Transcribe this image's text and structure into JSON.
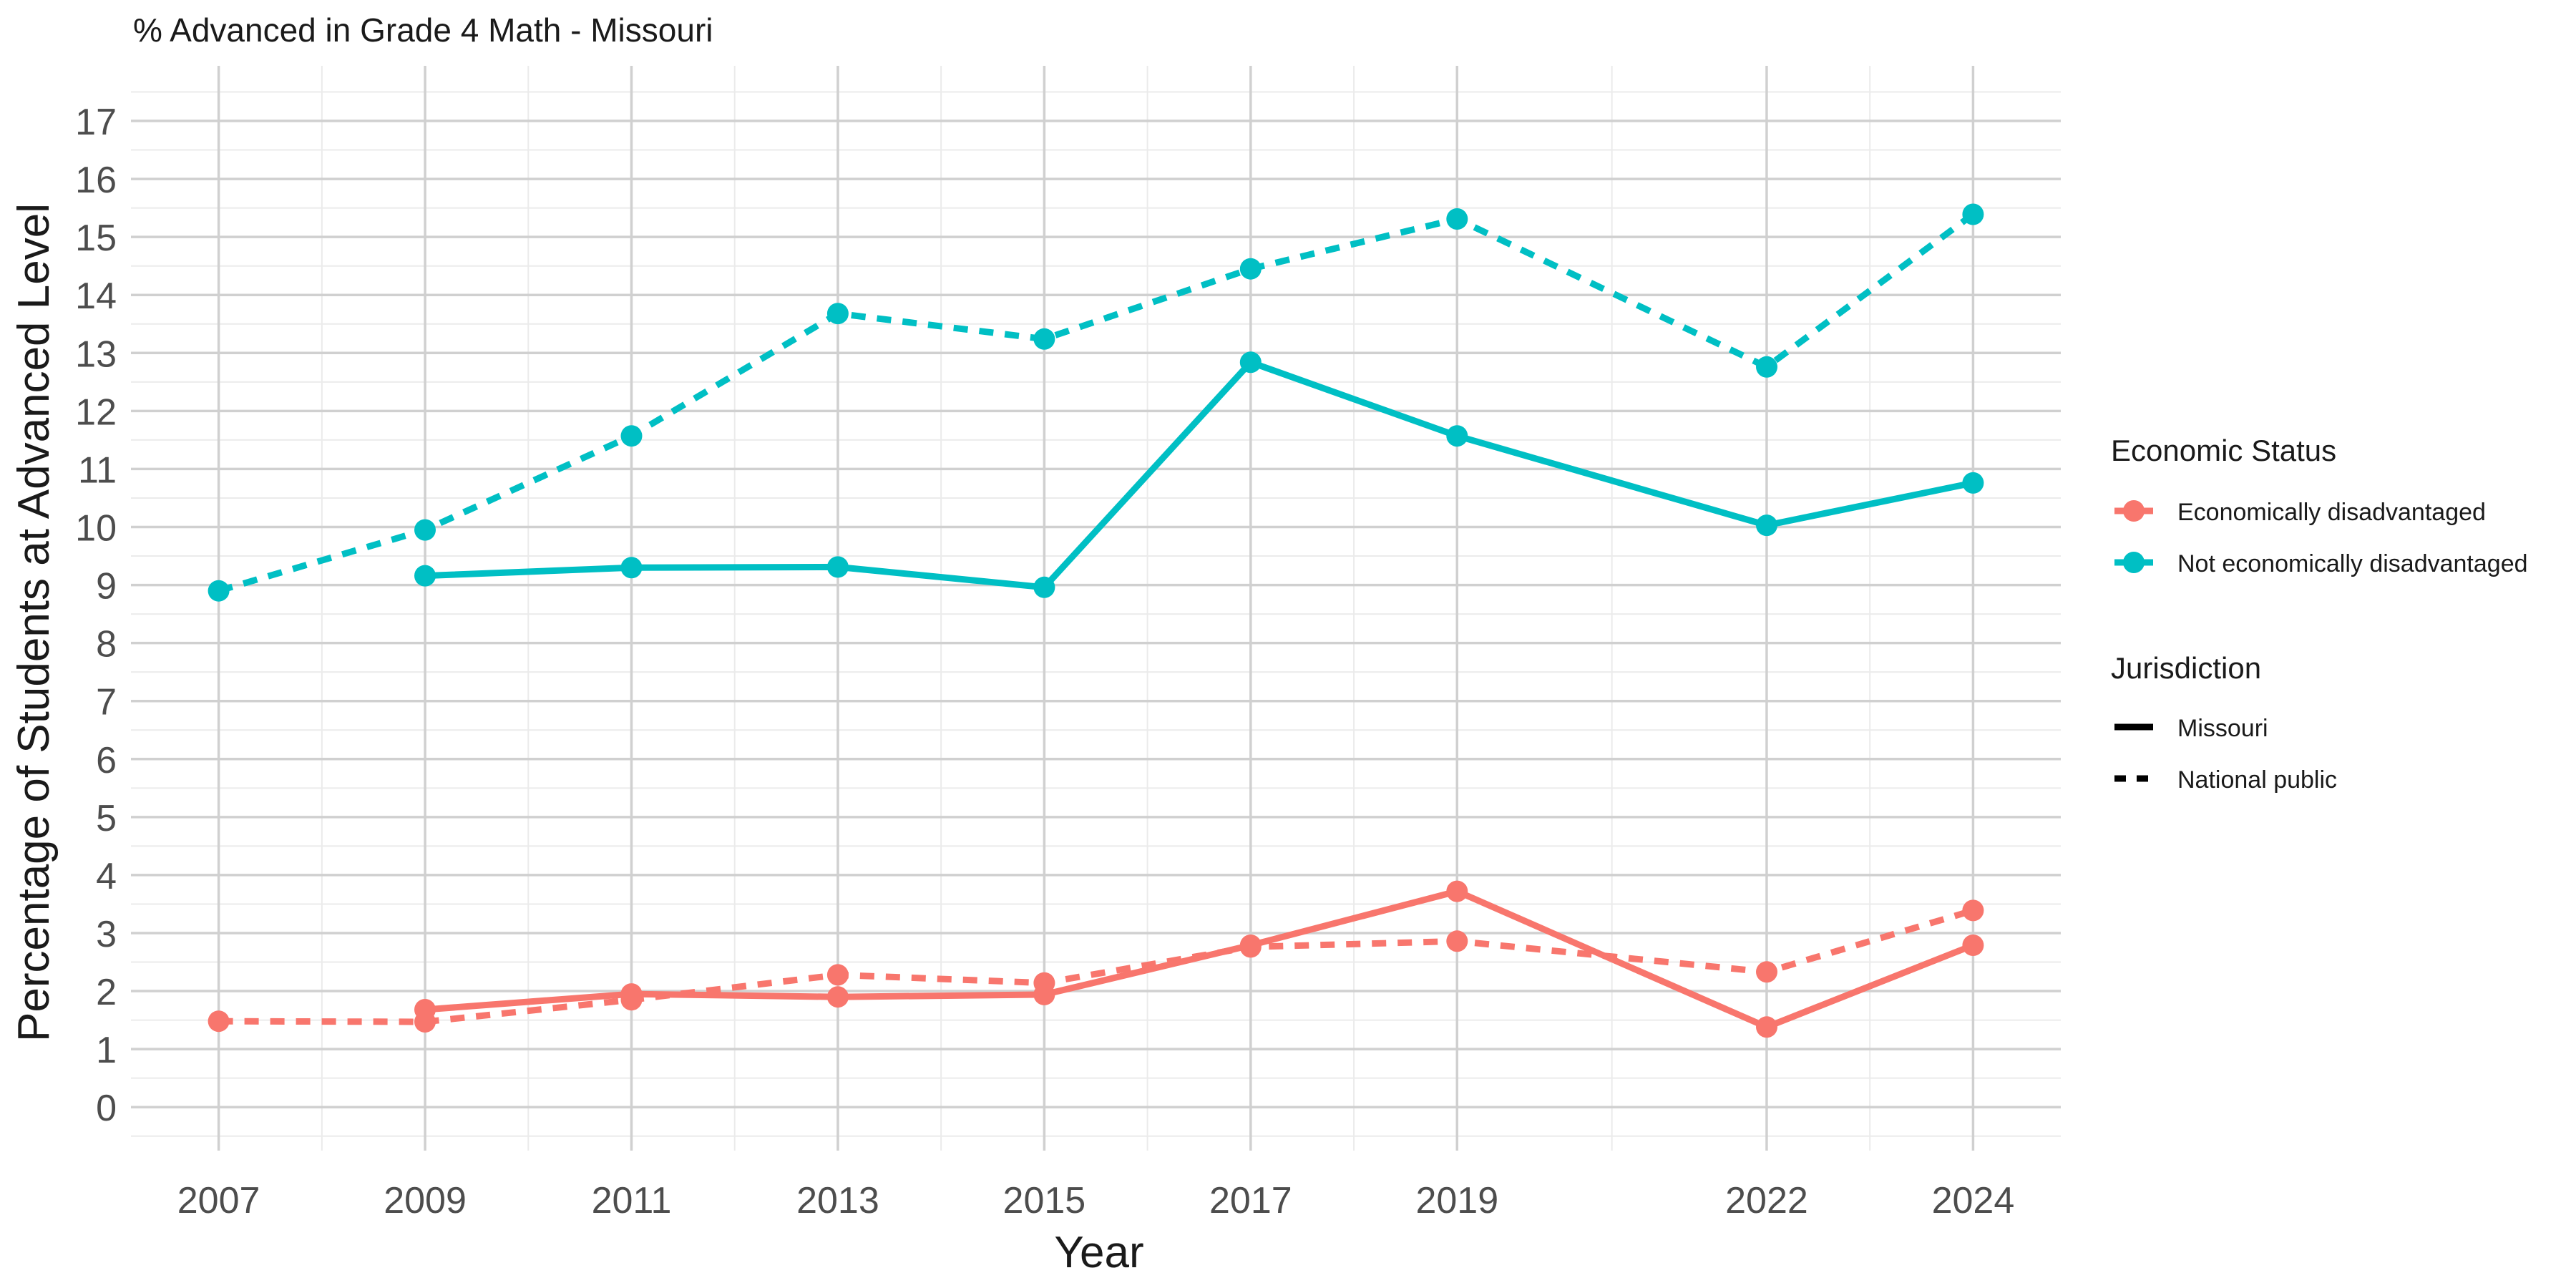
{
  "chart_data": {
    "type": "line",
    "title": "% Advanced in Grade 4 Math - Missouri",
    "xlabel": "Year",
    "ylabel": "Percentage of Students at Advanced Level",
    "x_ticks": [
      2007,
      2009,
      2011,
      2013,
      2015,
      2017,
      2019,
      2022,
      2024
    ],
    "xlim": [
      2006.15,
      2024.85
    ],
    "y_ticks": [
      0,
      1,
      2,
      3,
      4,
      5,
      6,
      7,
      8,
      9,
      10,
      11,
      12,
      13,
      14,
      15,
      16,
      17
    ],
    "ylim": [
      -0.75,
      17.95
    ],
    "grid": true,
    "legend_placement": "right",
    "legend": {
      "color_title": "Economic Status",
      "color_items": [
        {
          "label": "Economically disadvantaged",
          "color": "#F8766D"
        },
        {
          "label": "Not economically disadvantaged",
          "color": "#00BFC4"
        }
      ],
      "linetype_title": "Jurisdiction",
      "linetype_items": [
        {
          "label": "Missouri",
          "dash": "solid"
        },
        {
          "label": "National public",
          "dash": "dashed"
        }
      ]
    },
    "series": [
      {
        "economic_status": "Not economically disadvantaged",
        "jurisdiction": "National public",
        "color": "#00BFC4",
        "dash": "dashed",
        "points": [
          [
            2007,
            8.9
          ],
          [
            2009,
            9.95
          ],
          [
            2011,
            11.57
          ],
          [
            2013,
            13.68
          ],
          [
            2015,
            13.24
          ],
          [
            2017,
            14.45
          ],
          [
            2019,
            15.31
          ],
          [
            2022,
            12.76
          ],
          [
            2024,
            15.39
          ]
        ]
      },
      {
        "economic_status": "Not economically disadvantaged",
        "jurisdiction": "Missouri",
        "color": "#00BFC4",
        "dash": "solid",
        "points": [
          [
            2009,
            9.16
          ],
          [
            2011,
            9.3
          ],
          [
            2013,
            9.31
          ],
          [
            2015,
            8.96
          ],
          [
            2017,
            12.84
          ],
          [
            2019,
            11.57
          ],
          [
            2022,
            10.03
          ],
          [
            2024,
            10.76
          ]
        ]
      },
      {
        "economic_status": "Economically disadvantaged",
        "jurisdiction": "National public",
        "color": "#F8766D",
        "dash": "dashed",
        "points": [
          [
            2007,
            1.48
          ],
          [
            2009,
            1.47
          ],
          [
            2011,
            1.85
          ],
          [
            2013,
            2.28
          ],
          [
            2015,
            2.14
          ],
          [
            2017,
            2.76
          ],
          [
            2019,
            2.86
          ],
          [
            2022,
            2.33
          ],
          [
            2024,
            3.39
          ]
        ]
      },
      {
        "economic_status": "Economically disadvantaged",
        "jurisdiction": "Missouri",
        "color": "#F8766D",
        "dash": "solid",
        "points": [
          [
            2009,
            1.68
          ],
          [
            2011,
            1.95
          ],
          [
            2013,
            1.9
          ],
          [
            2015,
            1.94
          ],
          [
            2017,
            2.79
          ],
          [
            2019,
            3.72
          ],
          [
            2022,
            1.38
          ],
          [
            2024,
            2.79
          ]
        ]
      }
    ]
  }
}
